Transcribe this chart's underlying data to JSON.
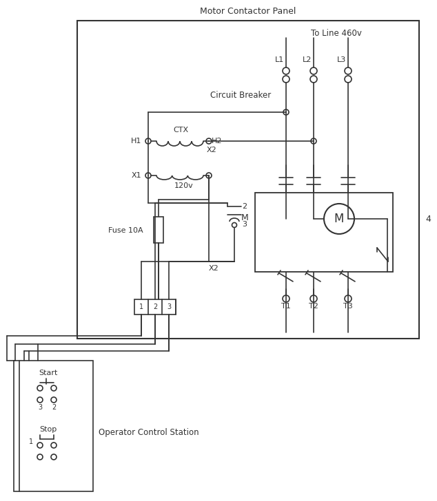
{
  "bg": "#ffffff",
  "lc": "#333333",
  "panel_title": "Motor Contactor Panel",
  "line_460": "To Line 460v",
  "cb_label": "Circuit Breaker",
  "ctx_label": "CTX",
  "v120_label": "120v",
  "fuse_label": "Fuse 10A",
  "operator_label": "Operator Control Station",
  "num4": "4",
  "L_labels": [
    "L1",
    "L2",
    "L3"
  ],
  "T_labels": [
    "T1",
    "T2",
    "T3"
  ],
  "start_label": "Start",
  "stop_label": "Stop",
  "M_label": "M",
  "H1_label": "H1",
  "H2_label": "H2",
  "X1_label": "X1",
  "X2_label": "X2",
  "M_contact_label": "M",
  "contact2": "2",
  "contact3": "3"
}
